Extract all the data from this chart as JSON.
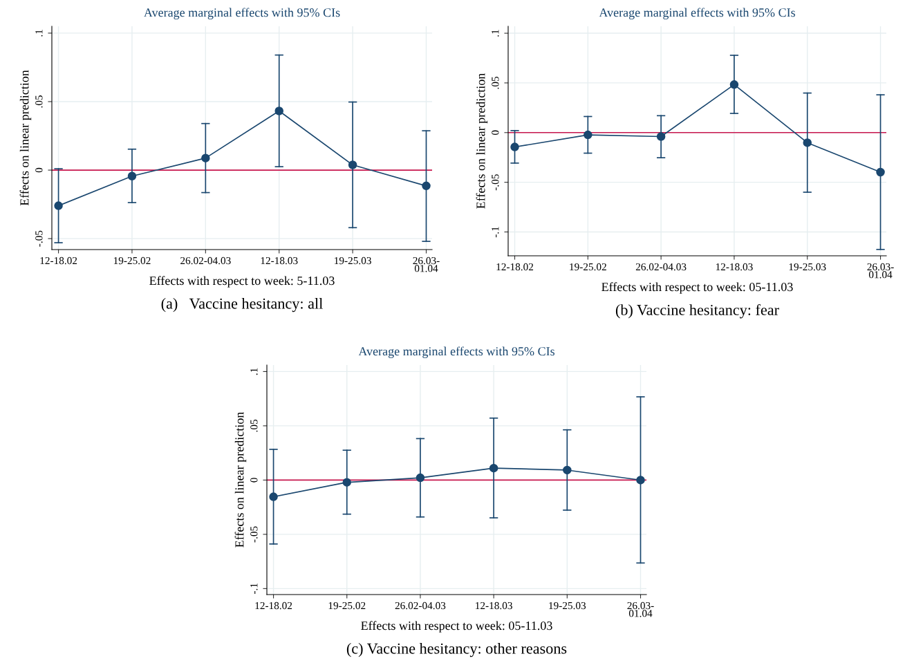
{
  "chart_data": [
    {
      "type": "line",
      "title": "Average marginal effects with 95% CIs",
      "xlabel": "Effects with respect to week: 5-11.03",
      "ylabel": "Effects on linear prediction",
      "categories": [
        "12-18.02",
        "19-25.02",
        "26.02-04.03",
        "12-18.03",
        "19-25.03",
        "26.03-\n01.04"
      ],
      "series": [
        {
          "color": "#1a476f",
          "values": [
            -0.026,
            -0.0044,
            0.0088,
            0.0432,
            0.0038,
            -0.0115
          ],
          "errors": [
            [
              -0.053,
              0.001
            ],
            [
              -0.0237,
              0.0153
            ],
            [
              -0.0164,
              0.034
            ],
            [
              0.0025,
              0.084
            ],
            [
              -0.042,
              0.0497
            ],
            [
              -0.052,
              0.0287
            ]
          ]
        }
      ],
      "ylim": [
        -0.058,
        0.105
      ],
      "yticks": [
        {
          "value": -0.05,
          "label": "-.05"
        },
        0,
        {
          "value": 0.05,
          "label": ".05"
        },
        {
          "value": 0.1,
          "label": ".1"
        }
      ],
      "ref_lines": [
        {
          "axis": "y",
          "value": 0,
          "color": "#c8174e"
        }
      ],
      "grid": true,
      "marker": "circle",
      "annotations": [
        "(a)   Vaccine hesitancy: all"
      ]
    },
    {
      "type": "line",
      "title": "Average marginal effects with 95% CIs",
      "xlabel": "Effects with respect to week: 05-11.03",
      "ylabel": "Effects on linear prediction",
      "categories": [
        "12-18.02",
        "19-25.02",
        "26.02-04.03",
        "12-18.03",
        "19-25.03",
        "26.03-\n01.04"
      ],
      "series": [
        {
          "color": "#1a476f",
          "values": [
            -0.0145,
            -0.0023,
            -0.004,
            0.0483,
            -0.0102,
            -0.0398
          ],
          "errors": [
            [
              -0.0307,
              0.002
            ],
            [
              -0.0207,
              0.0162
            ],
            [
              -0.0253,
              0.017
            ],
            [
              0.0193,
              0.0778
            ],
            [
              -0.06,
              0.0398
            ],
            [
              -0.1176,
              0.038
            ]
          ]
        }
      ],
      "ylim": [
        -0.124,
        0.107
      ],
      "yticks": [
        {
          "value": -0.1,
          "label": "-.1"
        },
        {
          "value": -0.05,
          "label": "-.05"
        },
        0,
        {
          "value": 0.05,
          "label": ".05"
        },
        {
          "value": 0.1,
          "label": ".1"
        }
      ],
      "ref_lines": [
        {
          "axis": "y",
          "value": 0,
          "color": "#c8174e"
        }
      ],
      "grid": true,
      "marker": "circle",
      "annotations": [
        "(b) Vaccine hesitancy: fear"
      ]
    },
    {
      "type": "line",
      "title": "Average marginal effects with 95% CIs",
      "xlabel": "Effects with respect to week: 05-11.03",
      "ylabel": "Effects on linear prediction",
      "categories": [
        "12-18.02",
        "19-25.02",
        "26.02-04.03",
        "12-18.03",
        "19-25.03",
        "26.03-\n01.04"
      ],
      "series": [
        {
          "color": "#1a476f",
          "values": [
            -0.0154,
            -0.0021,
            0.0021,
            0.011,
            0.0092,
            0
          ],
          "errors": [
            [
              -0.0589,
              0.0283
            ],
            [
              -0.0314,
              0.0275
            ],
            [
              -0.034,
              0.0382
            ],
            [
              -0.0348,
              0.0571
            ],
            [
              -0.0277,
              0.0463
            ],
            [
              -0.0764,
              0.0767
            ]
          ]
        }
      ],
      "ylim": [
        -0.1055,
        0.106
      ],
      "yticks": [
        {
          "value": -0.1,
          "label": "-.1"
        },
        {
          "value": -0.05,
          "label": "-.05"
        },
        0,
        {
          "value": 0.05,
          "label": ".05"
        },
        {
          "value": 0.1,
          "label": ".1"
        }
      ],
      "ref_lines": [
        {
          "axis": "y",
          "value": 0,
          "color": "#c8174e"
        }
      ],
      "grid": true,
      "marker": "circle",
      "annotations": [
        "(c) Vaccine hesitancy: other reasons"
      ]
    }
  ]
}
